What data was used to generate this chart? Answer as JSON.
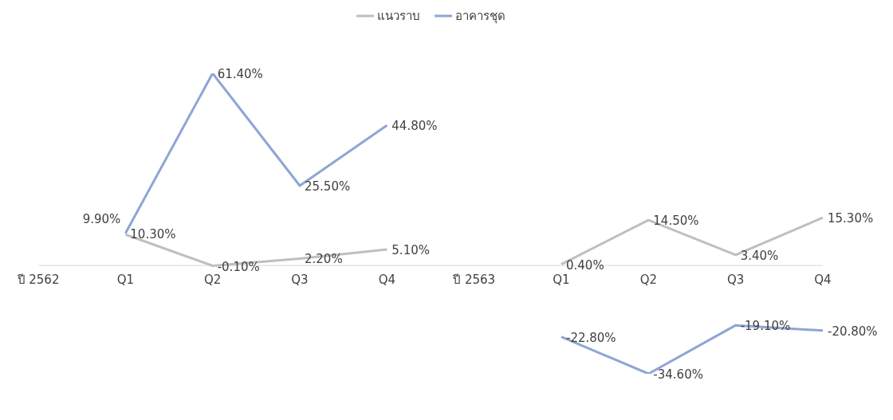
{
  "chart_data": {
    "type": "line",
    "categories": [
      "ปี 2562",
      "Q1",
      "Q2",
      "Q3",
      "Q4",
      "ปี 2563",
      "Q1",
      "Q2",
      "Q3",
      "Q4"
    ],
    "series": [
      {
        "name": "แนวราบ",
        "color": "#bfbfbf",
        "values": [
          null,
          9.9,
          -0.1,
          2.2,
          5.1,
          null,
          0.4,
          14.5,
          3.4,
          15.3
        ],
        "value_labels": [
          null,
          "9.90%",
          "-0.10%",
          "2.20%",
          "5.10%",
          null,
          "0.40%",
          "14.50%",
          "3.40%",
          "15.30%"
        ]
      },
      {
        "name": "อาคารชุด",
        "color": "#8ea5d6",
        "values": [
          null,
          10.3,
          61.4,
          25.5,
          44.8,
          null,
          -22.8,
          -34.6,
          -19.1,
          -20.8
        ],
        "value_labels": [
          null,
          "10.30%",
          "61.40%",
          "25.50%",
          "44.80%",
          null,
          "-22.80%",
          "-34.60%",
          "-19.10%",
          "-20.80%"
        ]
      }
    ],
    "legend": "top",
    "marker": "none",
    "line_style": "solid"
  }
}
